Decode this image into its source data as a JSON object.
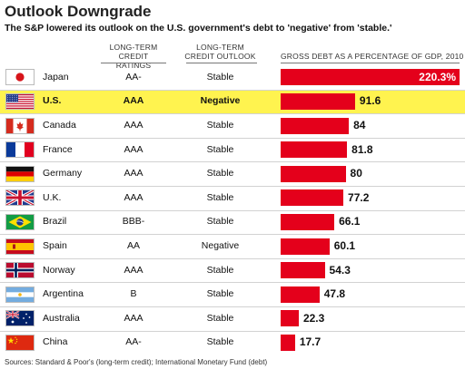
{
  "title": "Outlook Downgrade",
  "subtitle": "The S&P lowered its outlook on the U.S. government's debt to 'negative' from 'stable.'",
  "headers": {
    "rating_l1": "LONG-TERM",
    "rating_l2": "CREDIT RATINGS",
    "outlook_l1": "LONG-TERM",
    "outlook_l2": "CREDIT OUTLOOK",
    "debt": "GROSS DEBT AS A PERCENTAGE OF GDP, 2010"
  },
  "source": "Sources: Standard & Poor's (long-term credit); International Monetary Fund (debt)",
  "colors": {
    "bar": "#e4001b",
    "highlight": "#fff34f"
  },
  "chart_data": {
    "type": "bar",
    "orientation": "horizontal",
    "title": "Outlook Downgrade",
    "xlabel": "GROSS DEBT AS A PERCENTAGE OF GDP, 2010",
    "categories": [
      "Japan",
      "U.S.",
      "Canada",
      "France",
      "Germany",
      "U.K.",
      "Brazil",
      "Spain",
      "Norway",
      "Argentina",
      "Australia",
      "China"
    ],
    "values": [
      220.3,
      91.6,
      84,
      81.8,
      80,
      77.2,
      66.1,
      60.1,
      54.3,
      47.8,
      22.3,
      17.7
    ],
    "value_labels": [
      "220.3%",
      "91.6",
      "84",
      "81.8",
      "80",
      "77.2",
      "66.1",
      "60.1",
      "54.3",
      "47.8",
      "22.3",
      "17.7"
    ],
    "ratings": [
      "AA-",
      "AAA",
      "AAA",
      "AAA",
      "AAA",
      "AAA",
      "BBB-",
      "AA",
      "AAA",
      "B",
      "AAA",
      "AA-"
    ],
    "outlooks": [
      "Stable",
      "Negative",
      "Stable",
      "Stable",
      "Stable",
      "Stable",
      "Stable",
      "Negative",
      "Stable",
      "Stable",
      "Stable",
      "Stable"
    ],
    "flag_icons": [
      "japan-flag",
      "us-flag",
      "canada-flag",
      "france-flag",
      "germany-flag",
      "uk-flag",
      "brazil-flag",
      "spain-flag",
      "norway-flag",
      "argentina-flag",
      "australia-flag",
      "china-flag"
    ],
    "highlighted_row": "U.S.",
    "xlim": [
      0,
      220.3
    ]
  }
}
